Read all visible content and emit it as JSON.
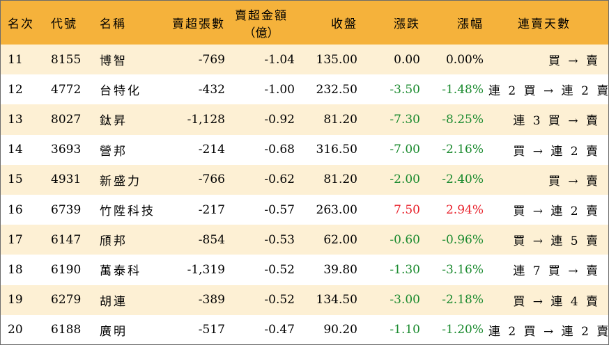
{
  "headers": {
    "rank": "名次",
    "code": "代號",
    "name": "名稱",
    "sell_volume": "賣超張數",
    "sell_amount_line1": "賣超金額",
    "sell_amount_line2": "（億）",
    "close": "收盤",
    "change": "漲跌",
    "change_pct": "漲幅",
    "streak": "連賣天數"
  },
  "colors": {
    "header_bg": "#f5b23b",
    "odd_row_bg": "#fdf0d4",
    "up": "#e8202a",
    "down": "#1a8a2e"
  },
  "rows": [
    {
      "rank": "11",
      "code": "8155",
      "name": "博智",
      "sell_volume": "-769",
      "sell_amount": "-1.04",
      "close": "135.00",
      "change": "0.00",
      "change_pct": "0.00%",
      "trend": "flat",
      "streak": "買 → 賣"
    },
    {
      "rank": "12",
      "code": "4772",
      "name": "台特化",
      "sell_volume": "-432",
      "sell_amount": "-1.00",
      "close": "232.50",
      "change": "-3.50",
      "change_pct": "-1.48%",
      "trend": "down",
      "streak": "連 2 買 → 連 2 賣"
    },
    {
      "rank": "13",
      "code": "8027",
      "name": "鈦昇",
      "sell_volume": "-1,128",
      "sell_amount": "-0.92",
      "close": "81.20",
      "change": "-7.30",
      "change_pct": "-8.25%",
      "trend": "down",
      "streak": "連 3 買 → 賣"
    },
    {
      "rank": "14",
      "code": "3693",
      "name": "營邦",
      "sell_volume": "-214",
      "sell_amount": "-0.68",
      "close": "316.50",
      "change": "-7.00",
      "change_pct": "-2.16%",
      "trend": "down",
      "streak": "買 → 連 2 賣"
    },
    {
      "rank": "15",
      "code": "4931",
      "name": "新盛力",
      "sell_volume": "-766",
      "sell_amount": "-0.62",
      "close": "81.20",
      "change": "-2.00",
      "change_pct": "-2.40%",
      "trend": "down",
      "streak": "買 → 賣"
    },
    {
      "rank": "16",
      "code": "6739",
      "name": "竹陞科技",
      "sell_volume": "-217",
      "sell_amount": "-0.57",
      "close": "263.00",
      "change": "7.50",
      "change_pct": "2.94%",
      "trend": "up",
      "streak": "買 → 連 2 賣"
    },
    {
      "rank": "17",
      "code": "6147",
      "name": "頎邦",
      "sell_volume": "-854",
      "sell_amount": "-0.53",
      "close": "62.00",
      "change": "-0.60",
      "change_pct": "-0.96%",
      "trend": "down",
      "streak": "買 → 連 5 賣"
    },
    {
      "rank": "18",
      "code": "6190",
      "name": "萬泰科",
      "sell_volume": "-1,319",
      "sell_amount": "-0.52",
      "close": "39.80",
      "change": "-1.30",
      "change_pct": "-3.16%",
      "trend": "down",
      "streak": "連 7 買 → 賣"
    },
    {
      "rank": "19",
      "code": "6279",
      "name": "胡連",
      "sell_volume": "-389",
      "sell_amount": "-0.52",
      "close": "134.50",
      "change": "-3.00",
      "change_pct": "-2.18%",
      "trend": "down",
      "streak": "買 → 連 4 賣"
    },
    {
      "rank": "20",
      "code": "6188",
      "name": "廣明",
      "sell_volume": "-517",
      "sell_amount": "-0.47",
      "close": "90.20",
      "change": "-1.10",
      "change_pct": "-1.20%",
      "trend": "down",
      "streak": "連 2 買 → 連 2 賣"
    }
  ]
}
